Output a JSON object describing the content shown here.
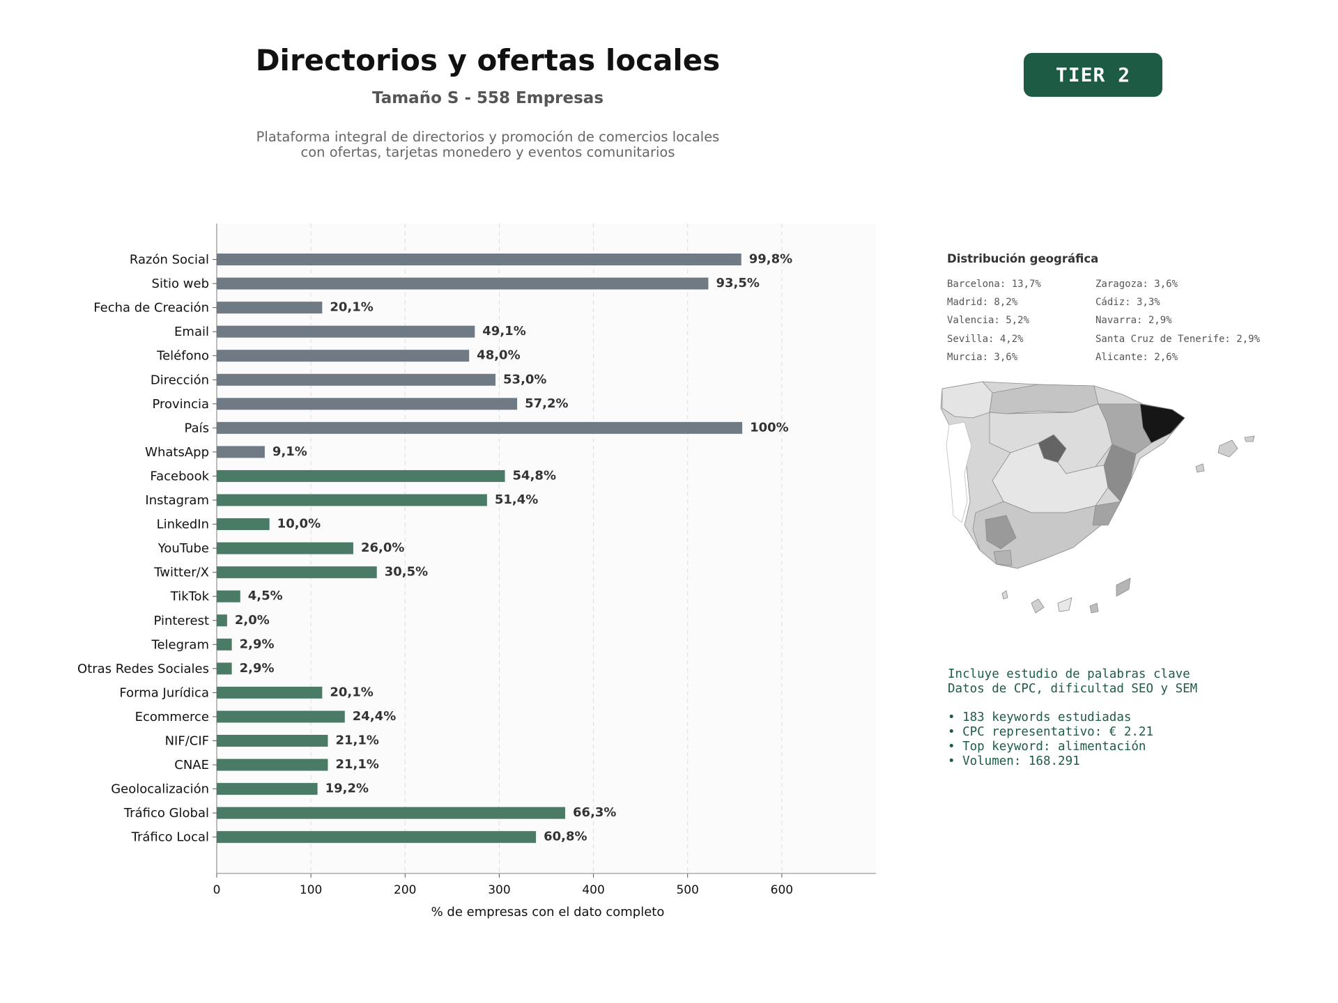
{
  "header": {
    "title": "Directorios y ofertas locales",
    "subtitle": "Tamaño S - 558 Empresas",
    "description_lines": [
      "Plataforma integral de directorios y promoción de comercios locales",
      "con ofertas, tarjetas monedero y eventos comunitarios"
    ],
    "tier": "TIER 2"
  },
  "colors": {
    "gray_bar": "#6f7a85",
    "green_bar": "#4a7b67",
    "brand": "#1e5b45"
  },
  "chart_data": {
    "type": "bar",
    "orientation": "horizontal",
    "title": "",
    "xlabel": "% de empresas con el dato completo",
    "ylabel": "",
    "xlim": [
      0,
      700
    ],
    "xticks": [
      0,
      100,
      200,
      300,
      400,
      500,
      600
    ],
    "grid": true,
    "series": [
      {
        "group": "gray",
        "categories": [
          "Razón Social",
          "Sitio web",
          "Fecha de Creación",
          "Email",
          "Teléfono",
          "Dirección",
          "Provincia",
          "País",
          "WhatsApp"
        ],
        "values": [
          557,
          522,
          112,
          274,
          268,
          296,
          319,
          558,
          51
        ],
        "labels": [
          "99,8%",
          "93,5%",
          "20,1%",
          "49,1%",
          "48,0%",
          "53,0%",
          "57,2%",
          "100%",
          "9,1%"
        ]
      },
      {
        "group": "green",
        "categories": [
          "Facebook",
          "Instagram",
          "LinkedIn",
          "YouTube",
          "Twitter/X",
          "TikTok",
          "Pinterest",
          "Telegram",
          "Otras Redes Sociales",
          "Forma Jurídica",
          "Ecommerce",
          "NIF/CIF",
          "CNAE",
          "Geolocalización",
          "Tráfico Global",
          "Tráfico Local"
        ],
        "values": [
          306,
          287,
          56,
          145,
          170,
          25,
          11,
          16,
          16,
          112,
          136,
          118,
          118,
          107,
          370,
          339
        ],
        "labels": [
          "54,8%",
          "51,4%",
          "10,0%",
          "26,0%",
          "30,5%",
          "4,5%",
          "2,0%",
          "2,9%",
          "2,9%",
          "20,1%",
          "24,4%",
          "21,1%",
          "21,1%",
          "19,2%",
          "66,3%",
          "60,8%"
        ]
      }
    ]
  },
  "geo": {
    "title": "Distribución geográfica",
    "left": [
      "Barcelona: 13,7%",
      "Madrid: 8,2%",
      "Valencia: 5,2%",
      "Sevilla: 4,2%",
      "Murcia: 3,6%"
    ],
    "right": [
      "Zaragoza: 3,6%",
      "Cádiz: 3,3%",
      "Navarra: 2,9%",
      "Santa Cruz de Tenerife: 2,9%",
      "Alicante: 2,6%"
    ]
  },
  "keywords": {
    "line1": "Incluye estudio de palabras clave",
    "line2": "Datos de CPC, dificultad SEO y SEM",
    "bullets": [
      "• 183 keywords estudiadas",
      "• CPC representativo: € 2.21",
      "• Top keyword: alimentación",
      "• Volumen: 168.291"
    ]
  }
}
